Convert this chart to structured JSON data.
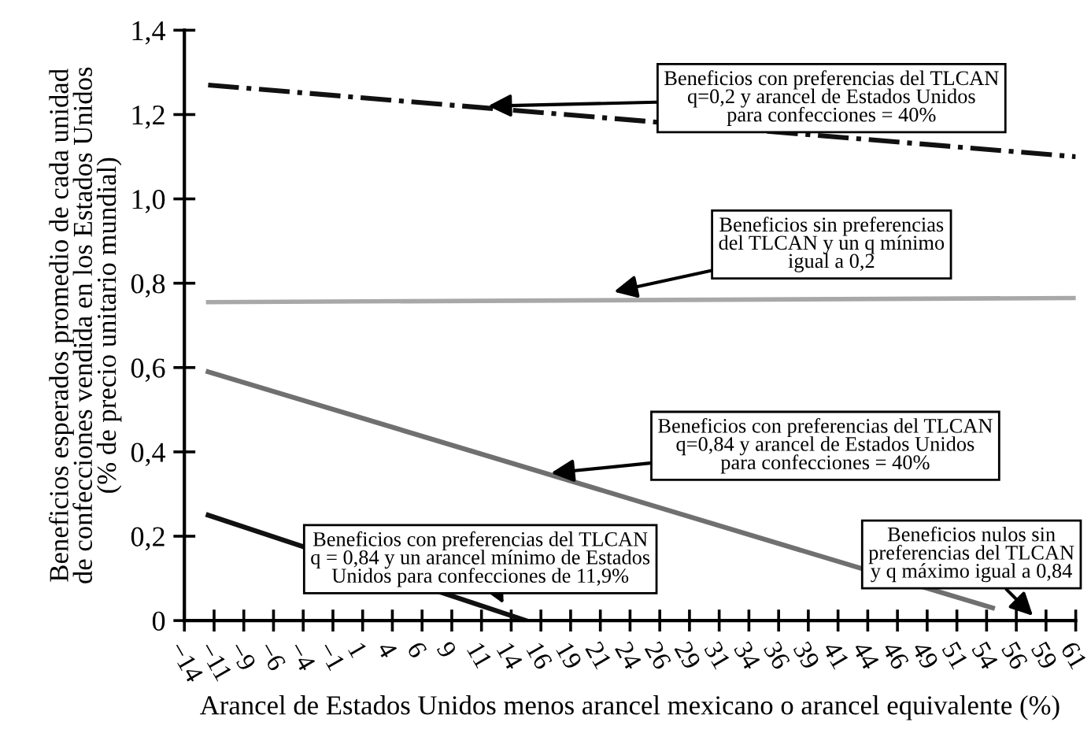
{
  "chart_data": {
    "type": "line",
    "xlabel": "Arancel de Estados Unidos menos arancel mexicano o arancel equivalente (%)",
    "ylabel": "Beneficios esperados promedio de cada unidad\nde confecciones vendida en los Estados Unidos\n(% de precio unitario mundial)",
    "series": [
      {
        "x": [
          -11.75,
          61.25
        ],
        "values": [
          1.27,
          1.1
        ],
        "color": "#111111",
        "line_style": "dashdot"
      },
      {
        "x": [
          -11.75,
          61.25
        ],
        "values": [
          0.755,
          0.765
        ],
        "color": "#a8a8a8",
        "line_style": "solid"
      },
      {
        "x": [
          -11.75,
          54.25
        ],
        "values": [
          0.59,
          0.03
        ],
        "color": "#707070",
        "line_style": "solid"
      },
      {
        "x": [
          -11.75,
          15
        ],
        "values": [
          0.25,
          0
        ],
        "color": "#111111",
        "line_style": "solid"
      }
    ],
    "xlim": [
      -13.75,
      61.25
    ],
    "xticks": [
      {
        "value": -13.75,
        "label": "−14"
      },
      {
        "value": -11.25,
        "label": "−11"
      },
      {
        "value": -8.75,
        "label": "−9"
      },
      {
        "value": -6.25,
        "label": "−6"
      },
      {
        "value": -3.75,
        "label": "−4"
      },
      {
        "value": -1.25,
        "label": "−1"
      },
      {
        "value": 1.25,
        "label": "1"
      },
      {
        "value": 3.75,
        "label": "4"
      },
      {
        "value": 6.25,
        "label": "6"
      },
      {
        "value": 8.75,
        "label": "9"
      },
      {
        "value": 11.25,
        "label": "11"
      },
      {
        "value": 13.75,
        "label": "14"
      },
      {
        "value": 16.25,
        "label": "16"
      },
      {
        "value": 18.75,
        "label": "19"
      },
      {
        "value": 21.25,
        "label": "21"
      },
      {
        "value": 23.75,
        "label": "24"
      },
      {
        "value": 26.25,
        "label": "26"
      },
      {
        "value": 28.75,
        "label": "29"
      },
      {
        "value": 31.25,
        "label": "31"
      },
      {
        "value": 33.75,
        "label": "34"
      },
      {
        "value": 36.25,
        "label": "36"
      },
      {
        "value": 38.75,
        "label": "39"
      },
      {
        "value": 41.25,
        "label": "41"
      },
      {
        "value": 43.75,
        "label": "44"
      },
      {
        "value": 46.25,
        "label": "46"
      },
      {
        "value": 48.75,
        "label": "49"
      },
      {
        "value": 51.25,
        "label": "51"
      },
      {
        "value": 53.75,
        "label": "54"
      },
      {
        "value": 56.25,
        "label": "56"
      },
      {
        "value": 58.75,
        "label": "59"
      },
      {
        "value": 61.25,
        "label": "61"
      }
    ],
    "ylim": [
      0,
      1.4
    ],
    "yticks": [
      {
        "value": 0,
        "label": "0"
      },
      {
        "value": 0.2,
        "label": "0,2"
      },
      {
        "value": 0.4,
        "label": "0,4"
      },
      {
        "value": 0.6,
        "label": "0,6"
      },
      {
        "value": 0.8,
        "label": "0,8"
      },
      {
        "value": 1.0,
        "label": "1,0"
      },
      {
        "value": 1.2,
        "label": "1,2"
      },
      {
        "value": 1.4,
        "label": "1,4"
      }
    ],
    "grid": false,
    "legend": false,
    "marker": "none",
    "annotations": [
      {
        "text": "Beneficios con preferencias del TLCAN\nq=0,2 y arancel de Estados Unidos\npara confecciones = 40%",
        "x": 11.8,
        "y": 1.22
      },
      {
        "text": "Beneficios sin preferencias\ndel TLCAN y un q mínimo\nigual a 0,2",
        "x": 22.4,
        "y": 0.78
      },
      {
        "text": "Beneficios con preferencias del TLCAN\nq=0,84 y arancel de Estados Unidos\npara confecciones = 40%",
        "x": 17.1,
        "y": 0.35
      },
      "Beneficios nulos sin\npreferencias del TLCAN\ny q máximo igual a 0,84",
      {
        "text": "Beneficios con preferencias del TLCAN\nq = 0,84 y un arancel mínimo de Estados\nUnidos para confecciones de 11,9%",
        "x": 13.1,
        "y": 0.04
      }
    ]
  }
}
